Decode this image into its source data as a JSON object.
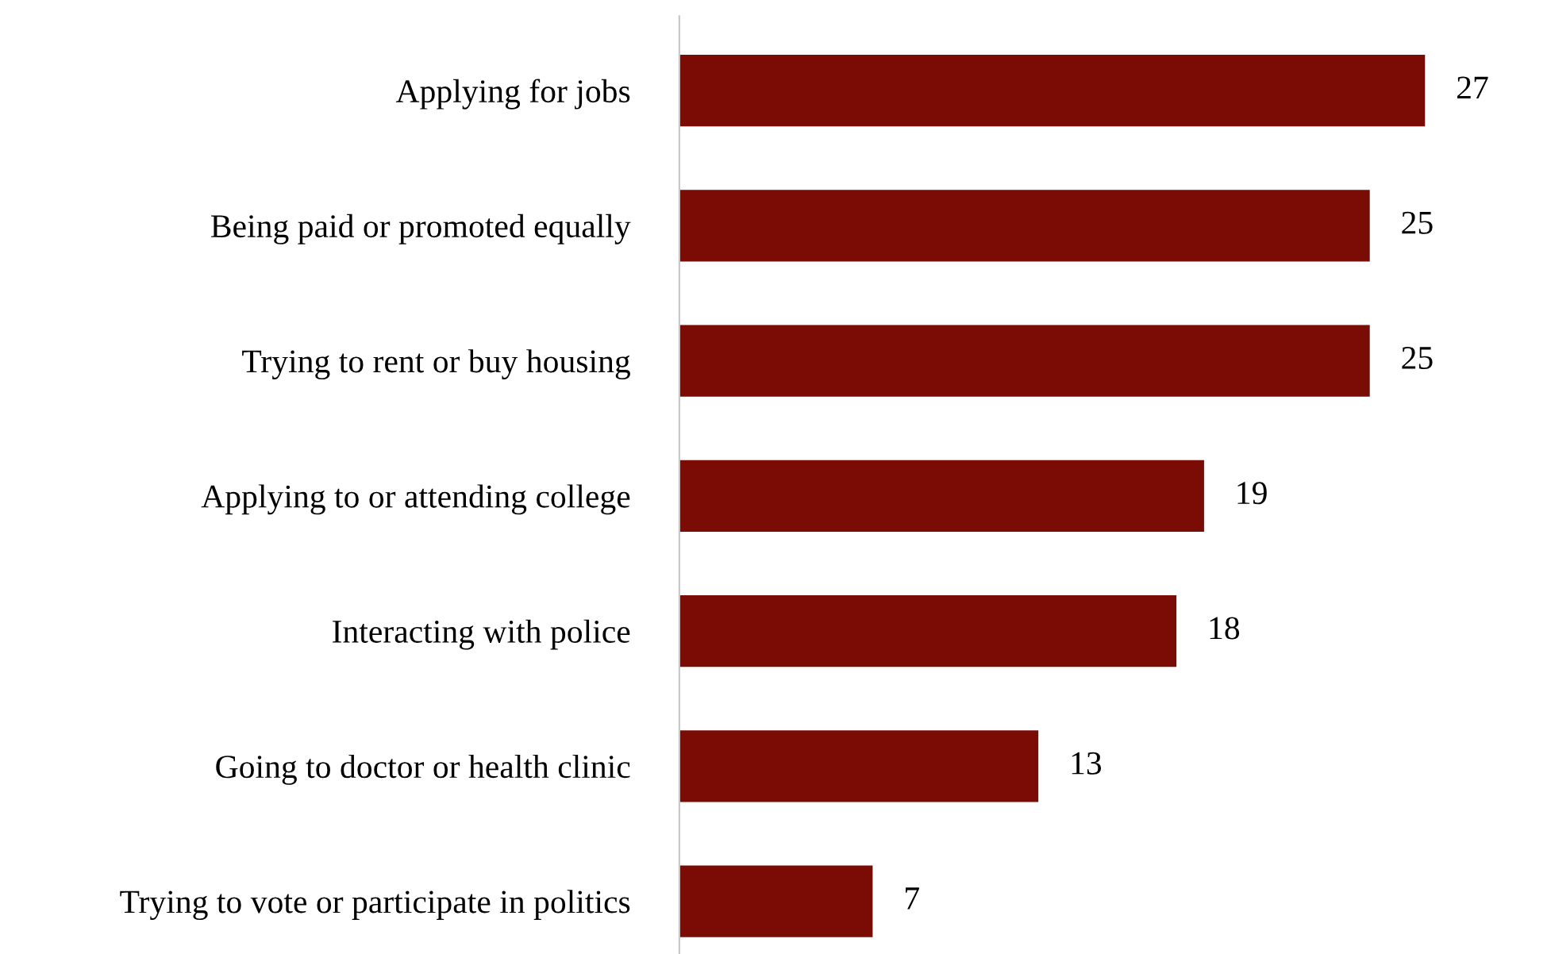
{
  "chart_data": {
    "type": "bar",
    "orientation": "horizontal",
    "categories": [
      "Applying for jobs",
      "Being paid or promoted equally",
      "Trying to rent or buy housing",
      "Applying to or attending college",
      "Interacting with police",
      "Going to doctor or health clinic",
      "Trying to vote or participate in politics"
    ],
    "values": [
      27,
      25,
      25,
      19,
      18,
      13,
      7
    ],
    "color": "#7a0c05",
    "data_labels": true,
    "grid": false,
    "legend": false
  }
}
